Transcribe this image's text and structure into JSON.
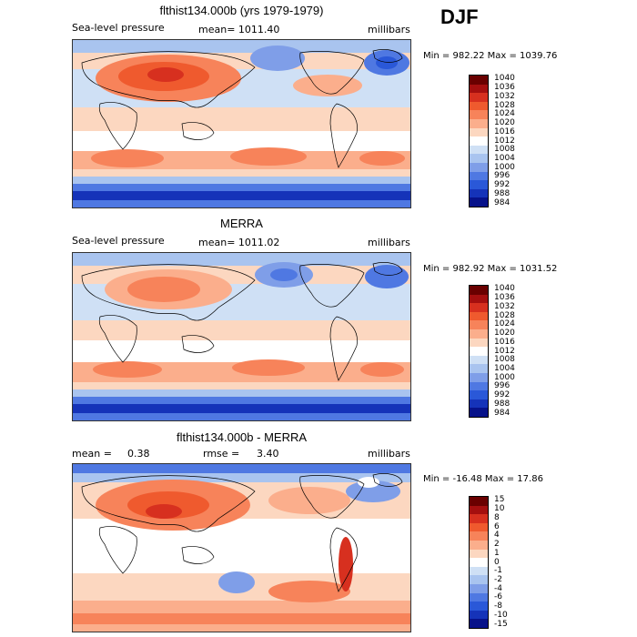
{
  "season": "DJF",
  "colors": {
    "ramp_deep_blue": "#0a1f8f",
    "ramp_blue": "#2f62e0",
    "ramp_light_blue": "#b9cff2",
    "ramp_white": "#ffffff",
    "ramp_peach": "#f7c9b0",
    "ramp_orange": "#f0733f",
    "ramp_red": "#b2180c",
    "ramp_dark_red": "#7a0404"
  },
  "chart_data": [
    {
      "type": "heatmap",
      "title": "flthist134.000b (yrs 1979-1979)",
      "field_label": "Sea-level pressure",
      "stat_label": "mean= 1011.40",
      "units": "millibars",
      "minmax": "Min = 982.22 Max = 1039.76",
      "min": 982.22,
      "max": 1039.76,
      "mean": 1011.4,
      "colorbar_levels": [
        "1040",
        "1036",
        "1032",
        "1028",
        "1024",
        "1020",
        "1016",
        "1012",
        "1008",
        "1004",
        "1000",
        "996",
        "992",
        "988",
        "984"
      ],
      "colorbar_colors": [
        "#6a0000",
        "#a50f0f",
        "#d7301f",
        "#ef5a2e",
        "#f7835a",
        "#fbae8c",
        "#fcd7c0",
        "#ffffff",
        "#cfe0f5",
        "#a9c4ef",
        "#7f9ee8",
        "#4f78e2",
        "#2a58d8",
        "#1533b9",
        "#07128a"
      ]
    },
    {
      "type": "heatmap",
      "title": "MERRA",
      "field_label": "Sea-level pressure",
      "stat_label": "mean= 1011.02",
      "units": "millibars",
      "minmax": "Min = 982.92 Max = 1031.52",
      "min": 982.92,
      "max": 1031.52,
      "mean": 1011.02,
      "colorbar_levels": [
        "1040",
        "1036",
        "1032",
        "1028",
        "1024",
        "1020",
        "1016",
        "1012",
        "1008",
        "1004",
        "1000",
        "996",
        "992",
        "988",
        "984"
      ],
      "colorbar_colors": [
        "#6a0000",
        "#a50f0f",
        "#d7301f",
        "#ef5a2e",
        "#f7835a",
        "#fbae8c",
        "#fcd7c0",
        "#ffffff",
        "#cfe0f5",
        "#a9c4ef",
        "#7f9ee8",
        "#4f78e2",
        "#2a58d8",
        "#1533b9",
        "#07128a"
      ]
    },
    {
      "type": "heatmap",
      "title": "flthist134.000b - MERRA",
      "mean_label": "mean =",
      "mean_value": "0.38",
      "rmse_label": "rmse =",
      "rmse_value": "3.40",
      "units": "millibars",
      "minmax": "Min = -16.48 Max =  17.86",
      "min": -16.48,
      "max": 17.86,
      "mean": 0.38,
      "rmse": 3.4,
      "colorbar_levels": [
        "15",
        "10",
        "8",
        "6",
        "4",
        "2",
        "1",
        "0",
        "-1",
        "-2",
        "-4",
        "-6",
        "-8",
        "-10",
        "-15"
      ],
      "colorbar_colors": [
        "#6a0000",
        "#a50f0f",
        "#d7301f",
        "#ef5a2e",
        "#f7835a",
        "#fbae8c",
        "#fcd7c0",
        "#ffffff",
        "#cfe0f5",
        "#a9c4ef",
        "#7f9ee8",
        "#4f78e2",
        "#2a58d8",
        "#1533b9",
        "#07128a"
      ]
    }
  ]
}
